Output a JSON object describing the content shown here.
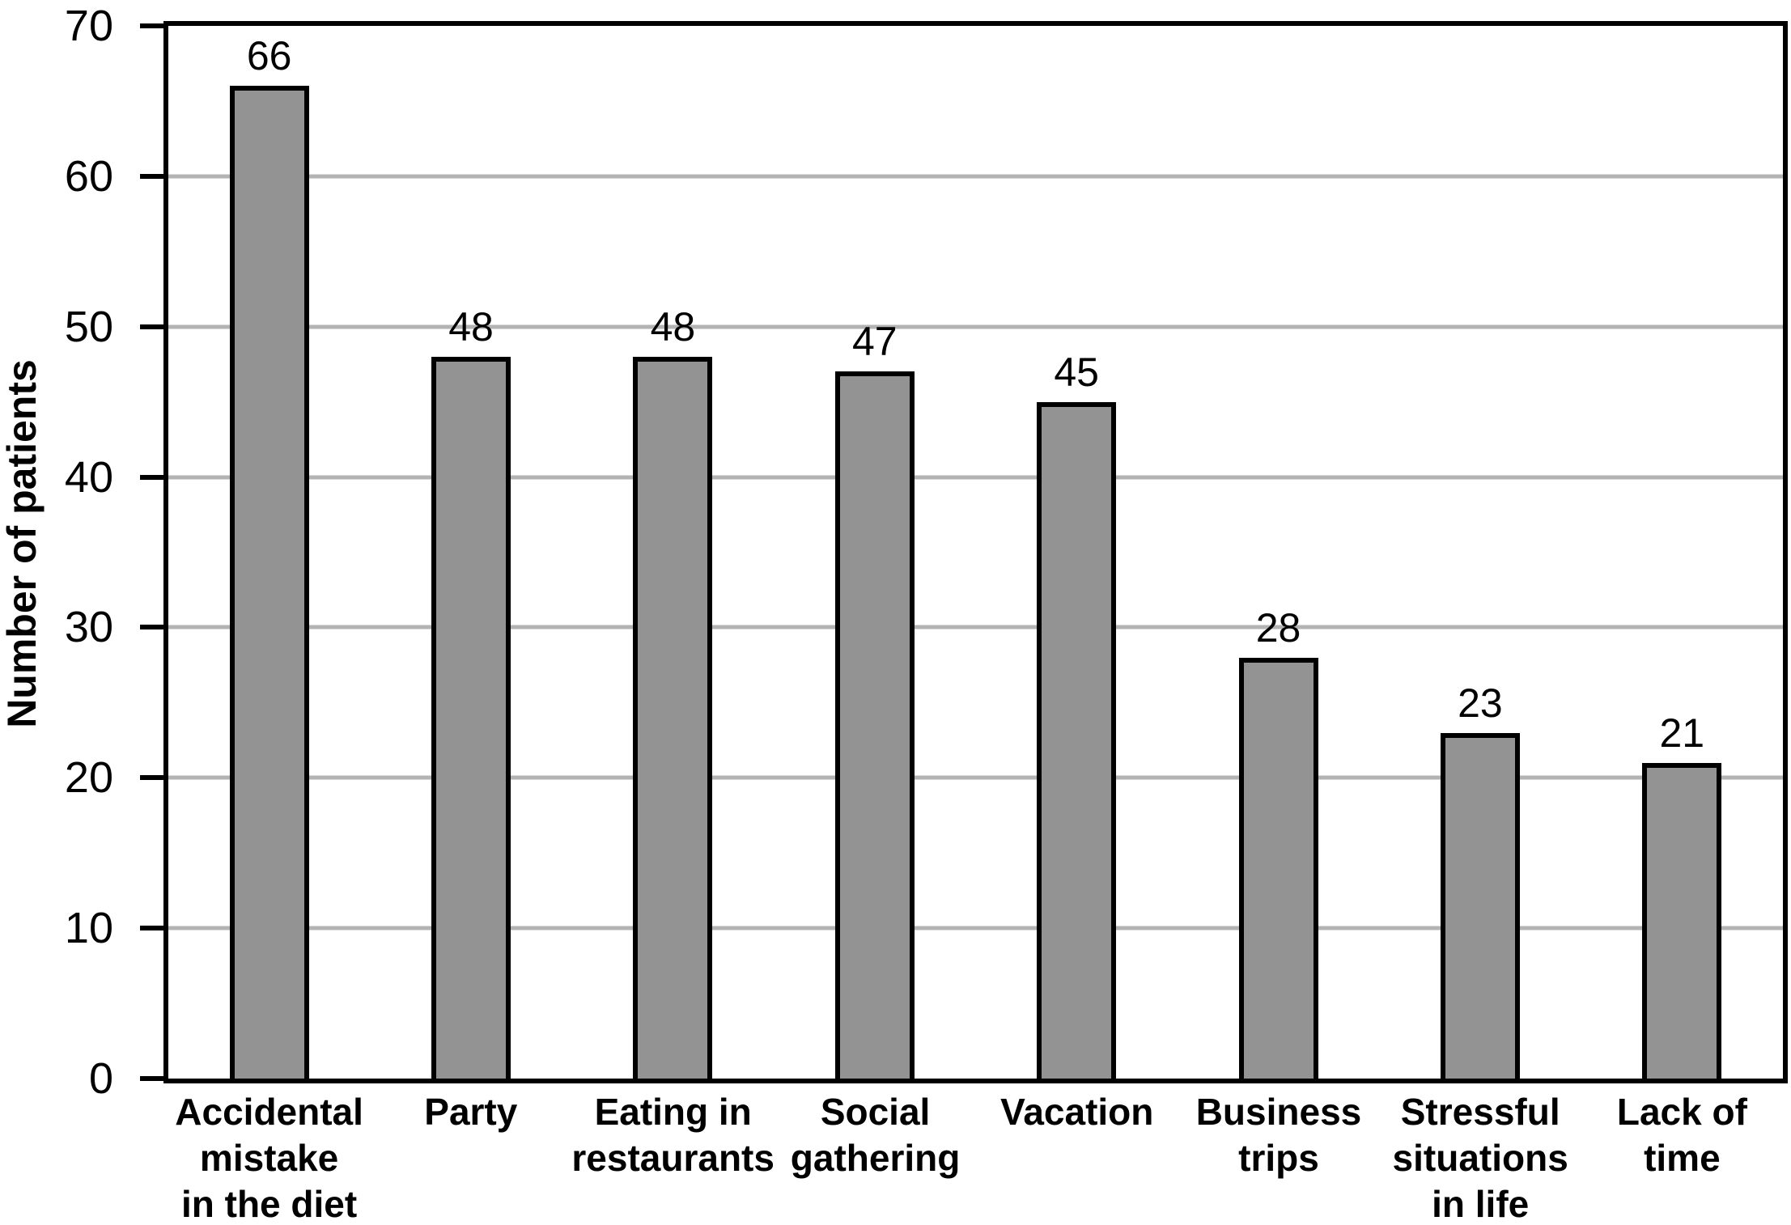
{
  "chart_data": {
    "type": "bar",
    "title": "",
    "ylabel": "Number of patients",
    "xlabel": "",
    "ylim": [
      0,
      70
    ],
    "ytick_interval": 10,
    "grid": "horizontal",
    "legend": "none",
    "categories": [
      "Accidental\nmistake\nin the diet",
      "Party",
      "Eating in\nrestaurants",
      "Social\ngathering",
      "Vacation",
      "Business\ntrips",
      "Stressful\nsituations\nin life",
      "Lack of\ntime"
    ],
    "values": [
      66,
      48,
      48,
      47,
      45,
      28,
      23,
      21
    ],
    "bar_fill_color": "#939393",
    "bar_border_color": "#000000",
    "gridline_color": "#b3b3b3",
    "axis_color": "#000000",
    "text_color": "#000000"
  }
}
